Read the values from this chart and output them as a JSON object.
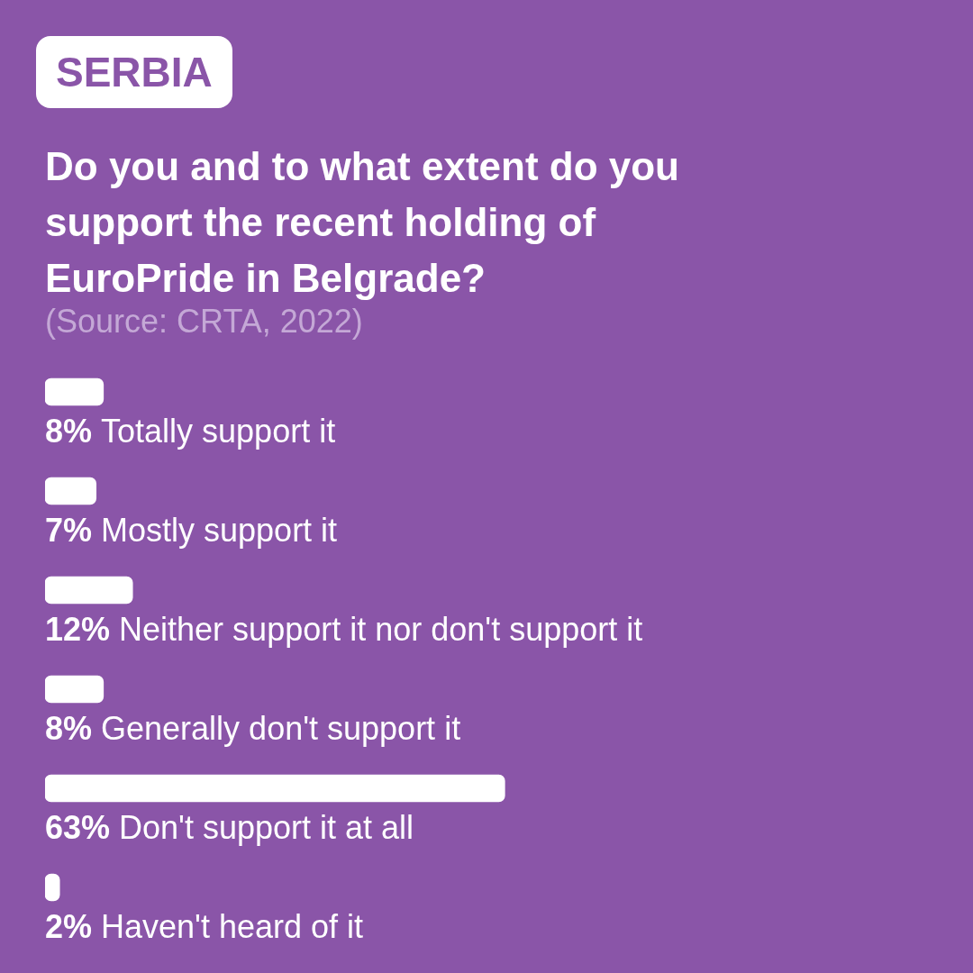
{
  "chart_data": {
    "type": "bar",
    "orientation": "horizontal",
    "title": "Do you and to what extent do you support the recent holding of EuroPride in Belgrade?",
    "annotations": [
      "SERBIA",
      "(Source: CRTA, 2022)"
    ],
    "categories": [
      "Totally support it",
      "Mostly support it",
      "Neither support it nor don't support it",
      "Generally don't support it",
      "Don't support it at all",
      "Haven't heard of it"
    ],
    "values": [
      8,
      7,
      12,
      8,
      63,
      2
    ],
    "value_labels": [
      "8%",
      "7%",
      "12%",
      "8%",
      "63%",
      "2%"
    ],
    "color": "#ffffff"
  }
}
